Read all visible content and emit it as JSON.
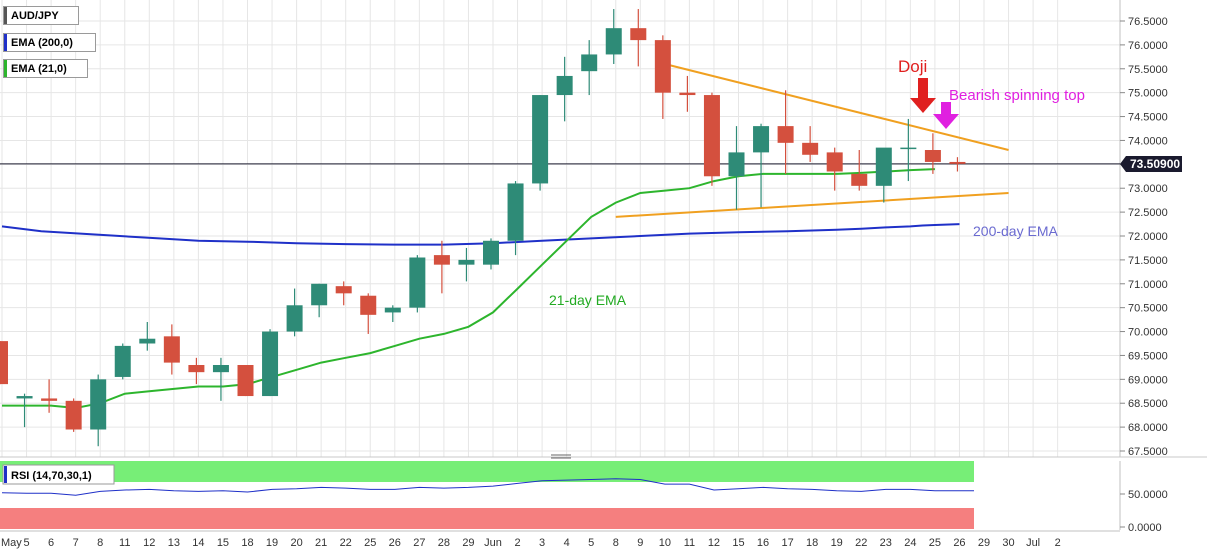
{
  "chart_data": {
    "type": "candlestick",
    "symbol": "AUD/JPY",
    "legend": [
      {
        "label": "AUD/JPY",
        "color": "#555555"
      },
      {
        "label": "EMA (200,0)",
        "color": "#1f30c8"
      },
      {
        "label": "EMA (21,0)",
        "color": "#2db52d"
      }
    ],
    "price_axis": {
      "ylim": [
        67.5,
        76.75
      ],
      "ticks": [
        "67.5000",
        "68.0000",
        "68.5000",
        "69.0000",
        "69.5000",
        "70.0000",
        "70.5000",
        "71.0000",
        "71.5000",
        "72.0000",
        "72.5000",
        "73.0000",
        "73.5000",
        "74.0000",
        "74.5000",
        "75.0000",
        "75.5000",
        "76.0000",
        "76.5000"
      ],
      "last_price": "73.50900"
    },
    "x_labels": [
      "May",
      "5",
      "6",
      "7",
      "8",
      "11",
      "12",
      "13",
      "14",
      "15",
      "18",
      "19",
      "20",
      "21",
      "22",
      "25",
      "26",
      "27",
      "28",
      "29",
      "Jun",
      "2",
      "3",
      "4",
      "5",
      "8",
      "9",
      "10",
      "11",
      "12",
      "15",
      "16",
      "17",
      "18",
      "19",
      "22",
      "23",
      "24",
      "25",
      "26",
      "29",
      "30",
      "Jul",
      "2"
    ],
    "candles": [
      {
        "o": 69.8,
        "h": 69.8,
        "l": 68.9,
        "c": 68.9
      },
      {
        "o": 68.6,
        "h": 68.7,
        "l": 68.0,
        "c": 68.65
      },
      {
        "o": 68.6,
        "h": 69.0,
        "l": 68.3,
        "c": 68.55
      },
      {
        "o": 68.55,
        "h": 68.6,
        "l": 67.9,
        "c": 67.95
      },
      {
        "o": 67.95,
        "h": 69.1,
        "l": 67.6,
        "c": 69.0
      },
      {
        "o": 69.05,
        "h": 69.75,
        "l": 69.0,
        "c": 69.7
      },
      {
        "o": 69.75,
        "h": 70.2,
        "l": 69.6,
        "c": 69.85
      },
      {
        "o": 69.9,
        "h": 70.15,
        "l": 69.1,
        "c": 69.35
      },
      {
        "o": 69.3,
        "h": 69.45,
        "l": 68.9,
        "c": 69.15
      },
      {
        "o": 69.15,
        "h": 69.45,
        "l": 68.55,
        "c": 69.3
      },
      {
        "o": 69.3,
        "h": 69.3,
        "l": 68.65,
        "c": 68.65
      },
      {
        "o": 68.65,
        "h": 70.05,
        "l": 68.65,
        "c": 70.0
      },
      {
        "o": 70.0,
        "h": 70.9,
        "l": 69.9,
        "c": 70.55
      },
      {
        "o": 70.55,
        "h": 71.0,
        "l": 70.3,
        "c": 71.0
      },
      {
        "o": 70.95,
        "h": 71.05,
        "l": 70.55,
        "c": 70.8
      },
      {
        "o": 70.75,
        "h": 70.8,
        "l": 69.95,
        "c": 70.35
      },
      {
        "o": 70.4,
        "h": 70.55,
        "l": 70.2,
        "c": 70.5
      },
      {
        "o": 70.5,
        "h": 71.6,
        "l": 70.4,
        "c": 71.55
      },
      {
        "o": 71.6,
        "h": 71.9,
        "l": 70.8,
        "c": 71.4
      },
      {
        "o": 71.4,
        "h": 71.75,
        "l": 71.05,
        "c": 71.5
      },
      {
        "o": 71.4,
        "h": 71.95,
        "l": 71.3,
        "c": 71.9
      },
      {
        "o": 71.9,
        "h": 73.15,
        "l": 71.6,
        "c": 73.1
      },
      {
        "o": 73.1,
        "h": 74.95,
        "l": 72.95,
        "c": 74.95
      },
      {
        "o": 74.95,
        "h": 75.75,
        "l": 74.4,
        "c": 75.35
      },
      {
        "o": 75.45,
        "h": 76.1,
        "l": 74.95,
        "c": 75.8
      },
      {
        "o": 75.8,
        "h": 76.75,
        "l": 75.6,
        "c": 76.35
      },
      {
        "o": 76.35,
        "h": 76.75,
        "l": 75.55,
        "c": 76.1
      },
      {
        "o": 76.1,
        "h": 76.2,
        "l": 74.45,
        "c": 75.0
      },
      {
        "o": 75.0,
        "h": 75.35,
        "l": 74.6,
        "c": 74.95
      },
      {
        "o": 74.95,
        "h": 75.0,
        "l": 73.05,
        "c": 73.25
      },
      {
        "o": 73.25,
        "h": 74.3,
        "l": 72.55,
        "c": 73.75
      },
      {
        "o": 73.75,
        "h": 74.35,
        "l": 72.6,
        "c": 74.3
      },
      {
        "o": 74.3,
        "h": 75.05,
        "l": 73.3,
        "c": 73.95
      },
      {
        "o": 73.95,
        "h": 74.3,
        "l": 73.55,
        "c": 73.7
      },
      {
        "o": 73.75,
        "h": 73.85,
        "l": 72.95,
        "c": 73.35
      },
      {
        "o": 73.3,
        "h": 73.8,
        "l": 72.95,
        "c": 73.05
      },
      {
        "o": 73.05,
        "h": 73.8,
        "l": 72.7,
        "c": 73.85
      },
      {
        "o": 73.85,
        "h": 74.45,
        "l": 73.15,
        "c": 73.85
      },
      {
        "o": 73.8,
        "h": 74.15,
        "l": 73.3,
        "c": 73.55
      },
      {
        "o": 73.55,
        "h": 73.65,
        "l": 73.35,
        "c": 73.51
      }
    ],
    "ema21": [
      68.45,
      68.45,
      68.45,
      68.4,
      68.5,
      68.7,
      68.75,
      68.8,
      68.85,
      68.85,
      68.9,
      69.05,
      69.2,
      69.35,
      69.45,
      69.55,
      69.7,
      69.85,
      69.95,
      70.1,
      70.4,
      70.9,
      71.4,
      71.9,
      72.4,
      72.7,
      72.9,
      72.95,
      73.0,
      73.15,
      73.25,
      73.3,
      73.3,
      73.3,
      73.3,
      73.32,
      73.35,
      73.38,
      73.4
    ],
    "ema200": [
      72.2,
      72.1,
      72.05,
      72.0,
      71.95,
      71.9,
      71.88,
      71.85,
      71.83,
      71.82,
      71.82,
      71.85,
      71.9,
      71.95,
      72.0,
      72.05,
      72.08,
      72.1,
      72.13,
      72.15,
      72.18,
      72.2,
      72.22,
      72.23,
      72.25
    ],
    "ema200_x": [
      0,
      1.6,
      3.2,
      4.8,
      6.4,
      8.0,
      10.0,
      12.0,
      14.0,
      16.0,
      18.0,
      20.0,
      22.0,
      24.0,
      26.0,
      28.0,
      30.0,
      32.0,
      34.0,
      35.0,
      36.0,
      37.0,
      37.5,
      38.0,
      39.0
    ],
    "trendlines": [
      {
        "name": "upper",
        "x0": 27,
        "y0": 75.6,
        "x1": 41,
        "y1": 73.8,
        "color": "#f0a020"
      },
      {
        "name": "lower",
        "x0": 25,
        "y0": 72.4,
        "x1": 41,
        "y1": 72.9,
        "color": "#f0a020"
      }
    ],
    "annotations": [
      {
        "text": "Doji",
        "color": "#e0201f"
      },
      {
        "text": "Bearish spinning top",
        "color": "#e020e0"
      },
      {
        "text": "21-day EMA",
        "color": "#22aa22"
      },
      {
        "text": "200-day EMA",
        "color": "#6a6ad0"
      }
    ],
    "rsi": {
      "label": "RSI (14,70,30,1)",
      "ticks": [
        "50.0000",
        "0.0000"
      ],
      "overbought_color": "#77ee77",
      "oversold_color": "#f57f7f",
      "values": [
        52,
        51,
        51,
        48,
        54,
        56,
        57,
        55,
        54,
        55,
        53,
        57,
        58,
        60,
        59,
        57,
        57,
        60,
        59,
        60,
        62,
        66,
        70,
        71,
        72,
        73,
        72,
        65,
        65,
        56,
        58,
        60,
        58,
        57,
        55,
        54,
        57,
        57,
        55,
        55
      ]
    }
  }
}
